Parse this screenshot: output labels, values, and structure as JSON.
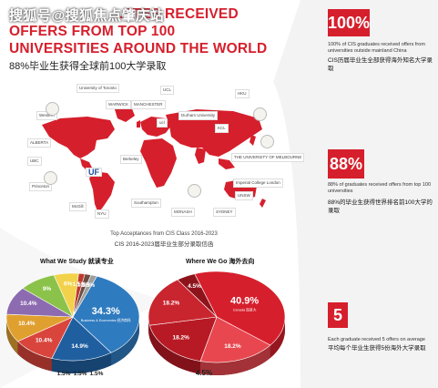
{
  "watermark": "搜狐号@搜狐焦点肇庆站",
  "headline": [
    "...ATES RECEIVED",
    "OFFERS FROM TOP 100",
    "UNIVERSITIES AROUND THE WORLD"
  ],
  "subtitle": "88%毕业生获得全球前100大学录取",
  "map": {
    "caption_en": "Top Acceptances from CIS Class 2016-2023",
    "caption_cn": "CIS 2016-2023届毕业生部分录取信函",
    "colors": {
      "land": "#d61f2c",
      "ocean": "#ffffff"
    },
    "logos": [
      "University of Toronto",
      "WARWICK",
      "MANCHESTER",
      "ucl",
      "Durham University",
      "UCL",
      "Princeton",
      "UBC",
      "McGill",
      "NYU",
      "Berkeley",
      "Southampton",
      "MONASH",
      "UNSW",
      "SYDNEY",
      "THE UNIVERSITY OF MELBOURNE",
      "Imperial College London",
      "Western",
      "ALBERTA",
      "UF",
      "HKU",
      "KCL"
    ]
  },
  "pie_study": {
    "title": "What We Study 就读专业",
    "slices": [
      {
        "value": 34.3,
        "label": "34.3%",
        "sub": "Business & Economics 经济商科",
        "color": "#2f7bbf"
      },
      {
        "value": 14.9,
        "label": "14.9%",
        "sub": "",
        "color": "#1f5fa0"
      },
      {
        "value": 10.4,
        "label": "10.4%",
        "sub": "",
        "color": "#d9453c"
      },
      {
        "value": 10.4,
        "label": "10.4%",
        "sub": "",
        "color": "#e0a030"
      },
      {
        "value": 10.4,
        "label": "10.4%",
        "sub": "",
        "color": "#8d6bb0"
      },
      {
        "value": 9,
        "label": "9%",
        "sub": "",
        "color": "#8bc34a"
      },
      {
        "value": 6,
        "label": "6%",
        "sub": "",
        "color": "#f2d24a"
      },
      {
        "value": 1.5,
        "label": "1.5%",
        "sub": "",
        "color": "#c0392b"
      },
      {
        "value": 1.5,
        "label": "1.5%",
        "sub": "",
        "color": "#6d4c41"
      },
      {
        "value": 1.5,
        "label": "1.5%",
        "sub": "",
        "color": "#9e9e9e"
      }
    ],
    "bottom_labels": [
      "1.5%",
      "1.5%",
      "1.5%"
    ]
  },
  "pie_where": {
    "title": "Where We Go 海外去向",
    "slices": [
      {
        "value": 40.9,
        "label": "40.9%",
        "sub": "Canada 加拿大",
        "color": "#d61f2c"
      },
      {
        "value": 18.2,
        "label": "18.2%",
        "sub": "United Kingdom 英国",
        "color": "#e8474f"
      },
      {
        "value": 18.2,
        "label": "18.2%",
        "sub": "USA 美国",
        "color": "#b81a25"
      },
      {
        "value": 18.2,
        "label": "18.2%",
        "sub": "Australia 澳洲",
        "color": "#c9252f"
      },
      {
        "value": 4.5,
        "label": "4.5%",
        "sub": "Hong Kong 中国香港",
        "color": "#8e141c"
      }
    ]
  },
  "stats": [
    {
      "big": "100%",
      "en": "100% of CIS graduates received offers from universities outside mainland China",
      "cn": "CIS历届毕业生全部获得海外知名大学录取"
    },
    {
      "big": "88%",
      "en": "88% of graduates received offers from top 100 universities",
      "cn": "88%的毕业生获得世界排名前100大学的录取"
    },
    {
      "big": "5",
      "en": "Each graduate received 5 offers on average",
      "cn": "平均每个毕业生获得5份海外大学录取"
    }
  ]
}
